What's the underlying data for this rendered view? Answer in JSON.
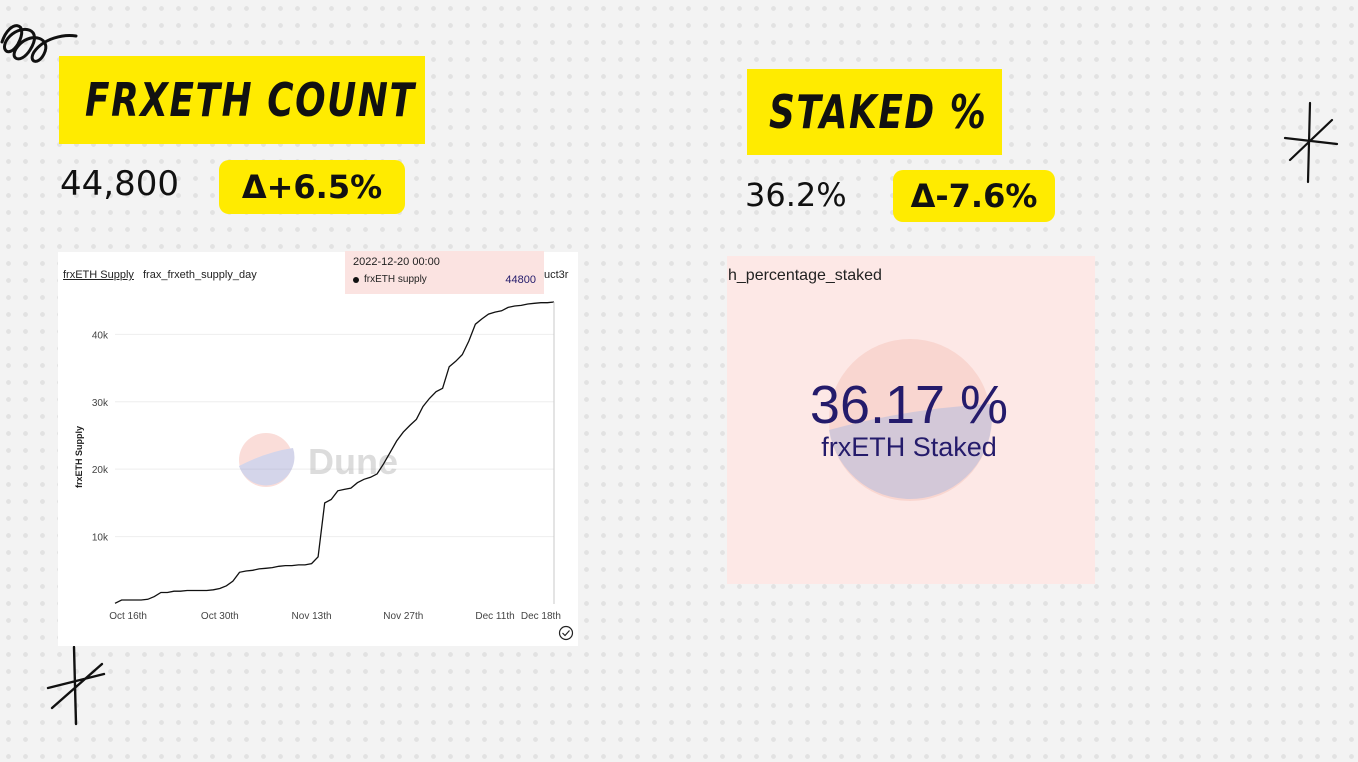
{
  "left": {
    "title": "FRXETH COUNT",
    "value": "44,800",
    "delta": "Δ+6.5%",
    "chart_tab": "frxETH Supply",
    "chart_subtitle": "frax_frxeth_supply_day",
    "chart_cut_text": "uct3r",
    "watermark": "Dune",
    "tooltip": {
      "date": "2022-12-20 00:00",
      "series": "frxETH supply",
      "value": "44800"
    }
  },
  "right": {
    "title": "STAKED %",
    "value": "36.2%",
    "delta": "Δ-7.6%",
    "panel_title": "h_percentage_staked",
    "counter_value": "36.17 %",
    "counter_label": "frxETH Staked"
  },
  "colors": {
    "yellow": "#ffeb00",
    "counter_text": "#241b6b",
    "panel_bg": "#fde8e6",
    "tooltip_bg": "#fbe3e1"
  },
  "chart_data": {
    "type": "line",
    "ylabel": "frxETH Supply",
    "xlabel": "",
    "ylim": [
      0,
      44800
    ],
    "ytick_labels": [
      "10k",
      "20k",
      "30k",
      "40k"
    ],
    "ytick_values": [
      10000,
      20000,
      30000,
      40000
    ],
    "xtick_labels": [
      "Oct 16th",
      "Oct 30th",
      "Nov 13th",
      "Nov 27th",
      "Dec 11th",
      "Dec 18th"
    ],
    "xtick_values": [
      "2022-10-16",
      "2022-10-30",
      "2022-11-13",
      "2022-11-27",
      "2022-12-11",
      "2022-12-18"
    ],
    "series": [
      {
        "name": "frxETH supply",
        "x": [
          "2022-10-14",
          "2022-10-15",
          "2022-10-16",
          "2022-10-17",
          "2022-10-18",
          "2022-10-19",
          "2022-10-20",
          "2022-10-21",
          "2022-10-22",
          "2022-10-23",
          "2022-10-24",
          "2022-10-25",
          "2022-10-26",
          "2022-10-27",
          "2022-10-28",
          "2022-10-29",
          "2022-10-30",
          "2022-10-31",
          "2022-11-01",
          "2022-11-02",
          "2022-11-03",
          "2022-11-04",
          "2022-11-05",
          "2022-11-06",
          "2022-11-07",
          "2022-11-08",
          "2022-11-09",
          "2022-11-10",
          "2022-11-11",
          "2022-11-12",
          "2022-11-13",
          "2022-11-14",
          "2022-11-15",
          "2022-11-16",
          "2022-11-17",
          "2022-11-18",
          "2022-11-19",
          "2022-11-20",
          "2022-11-21",
          "2022-11-22",
          "2022-11-23",
          "2022-11-24",
          "2022-11-25",
          "2022-11-26",
          "2022-11-27",
          "2022-11-28",
          "2022-11-29",
          "2022-11-30",
          "2022-12-01",
          "2022-12-02",
          "2022-12-03",
          "2022-12-04",
          "2022-12-05",
          "2022-12-06",
          "2022-12-07",
          "2022-12-08",
          "2022-12-09",
          "2022-12-10",
          "2022-12-11",
          "2022-12-12",
          "2022-12-13",
          "2022-12-14",
          "2022-12-15",
          "2022-12-16",
          "2022-12-17",
          "2022-12-18",
          "2022-12-19",
          "2022-12-20"
        ],
        "values": [
          100,
          600,
          600,
          600,
          600,
          700,
          1100,
          1700,
          1700,
          1900,
          1900,
          2000,
          2000,
          2000,
          2000,
          2100,
          2300,
          2700,
          3400,
          4700,
          4900,
          5000,
          5200,
          5300,
          5400,
          5600,
          5700,
          5700,
          5800,
          5800,
          6000,
          7000,
          15000,
          15500,
          16800,
          17000,
          17200,
          18000,
          18500,
          18800,
          19300,
          20800,
          22500,
          24200,
          25500,
          26500,
          27400,
          29300,
          30500,
          31500,
          32000,
          35200,
          36000,
          37000,
          39000,
          41500,
          42300,
          43000,
          43300,
          43500,
          44000,
          44200,
          44300,
          44500,
          44600,
          44700,
          44700,
          44800
        ]
      }
    ],
    "grid": true,
    "legend": "none"
  }
}
